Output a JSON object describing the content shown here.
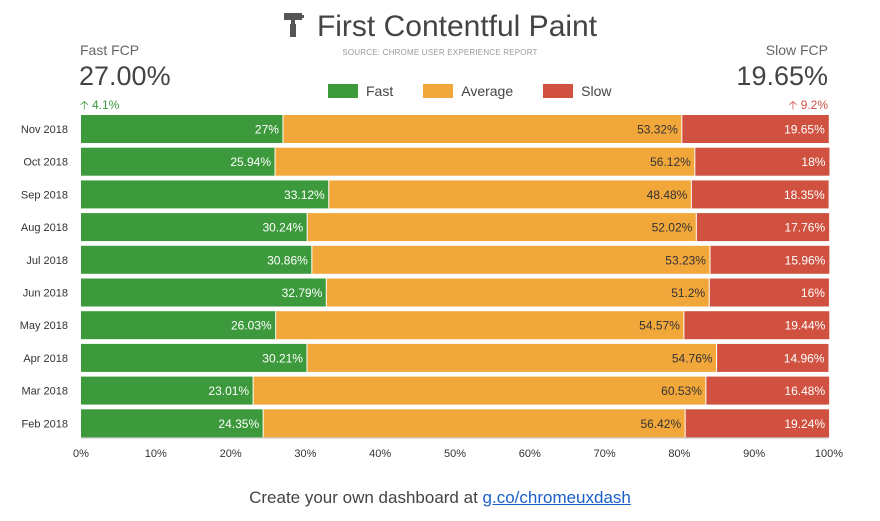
{
  "header": {
    "title": "First Contentful Paint",
    "source": "SOURCE: CHROME USER EXPERIENCE REPORT"
  },
  "kpis": {
    "fast": {
      "label": "Fast FCP",
      "value": "27.00%",
      "delta": "4.1%"
    },
    "slow": {
      "label": "Slow FCP",
      "value": "19.65%",
      "delta": "9.2%"
    }
  },
  "footer": {
    "text": "Create your own dashboard at ",
    "link": "g.co/chromeuxdash"
  },
  "colors": {
    "fast": "#3c9a3c",
    "average": "#f2a73b",
    "slow": "#d05140"
  },
  "chart_data": {
    "type": "bar",
    "orientation": "horizontal",
    "stacked": true,
    "categories": [
      "Nov 2018",
      "Oct 2018",
      "Sep 2018",
      "Aug 2018",
      "Jul 2018",
      "Jun 2018",
      "May 2018",
      "Apr 2018",
      "Mar 2018",
      "Feb 2018"
    ],
    "series": [
      {
        "name": "Fast",
        "color": "#3c9a3c",
        "values": [
          27,
          25.94,
          33.12,
          30.24,
          30.86,
          32.79,
          26.03,
          30.21,
          23.01,
          24.35
        ],
        "labels": [
          "27%",
          "25.94%",
          "33.12%",
          "30.24%",
          "30.86%",
          "32.79%",
          "26.03%",
          "30.21%",
          "23.01%",
          "24.35%"
        ]
      },
      {
        "name": "Average",
        "color": "#f2a73b",
        "values": [
          53.32,
          56.12,
          48.48,
          52.02,
          53.23,
          51.2,
          54.57,
          54.76,
          60.53,
          56.42
        ],
        "labels": [
          "53.32%",
          "56.12%",
          "48.48%",
          "52.02%",
          "53.23%",
          "51.2%",
          "54.57%",
          "54.76%",
          "60.53%",
          "56.42%"
        ]
      },
      {
        "name": "Slow",
        "color": "#d05140",
        "values": [
          19.65,
          18,
          18.35,
          17.76,
          15.96,
          16,
          19.44,
          14.96,
          16.48,
          19.24
        ],
        "labels": [
          "19.65%",
          "18%",
          "18.35%",
          "17.76%",
          "15.96%",
          "16%",
          "19.44%",
          "14.96%",
          "16.48%",
          "19.24%"
        ]
      },
      {
        "name": "",
        "color": "#ffffff",
        "values": [
          0.03,
          -0.06,
          0.05,
          -0.02,
          -0.05,
          0.01,
          -0.04,
          0.07,
          -0.02,
          -0.01
        ]
      }
    ],
    "xlim": [
      0,
      100
    ],
    "xticks": [
      "0%",
      "10%",
      "20%",
      "30%",
      "40%",
      "50%",
      "60%",
      "70%",
      "80%",
      "90%",
      "100%"
    ],
    "legend": "top-center",
    "grid": false
  }
}
